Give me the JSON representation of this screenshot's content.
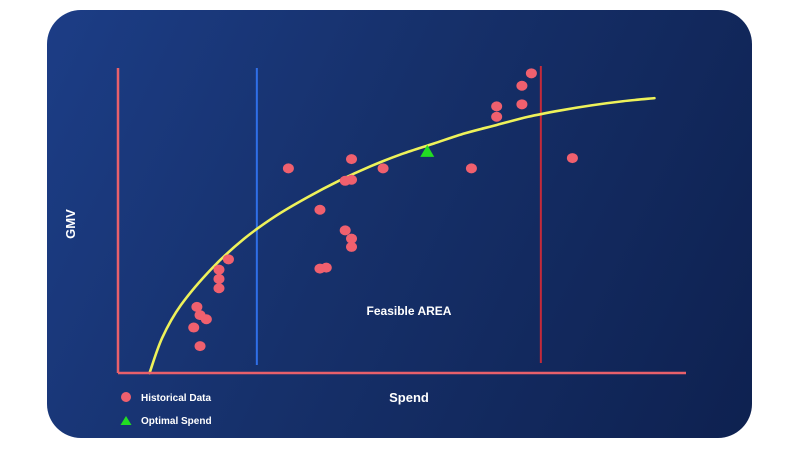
{
  "chart_data": {
    "type": "scatter",
    "xlabel": "Spend",
    "ylabel": "GMV",
    "annotation": "Feasible AREA",
    "grid": false,
    "legend_position": "bottom-left",
    "colors": {
      "background_start": "#1c3d86",
      "background_end": "#0e2150",
      "axes": "#e8606b",
      "points": "#f0606e",
      "curve": "#eef25a",
      "optimal": "#22dd22",
      "min_line": "#2f6fe8",
      "max_line": "#c42a3a"
    },
    "series": [
      {
        "name": "Historical Data",
        "marker": "circle",
        "points": [
          [
            1.3,
            1.3
          ],
          [
            1.2,
            2.2
          ],
          [
            1.3,
            2.8
          ],
          [
            1.25,
            3.2
          ],
          [
            1.4,
            2.6
          ],
          [
            1.6,
            4.1
          ],
          [
            1.6,
            4.55
          ],
          [
            1.6,
            5.0
          ],
          [
            1.75,
            5.5
          ],
          [
            2.7,
            9.9
          ],
          [
            3.2,
            7.9
          ],
          [
            3.2,
            5.05
          ],
          [
            3.3,
            5.1
          ],
          [
            3.6,
            6.9
          ],
          [
            3.7,
            6.5
          ],
          [
            3.7,
            6.1
          ],
          [
            3.6,
            9.3
          ],
          [
            3.7,
            9.35
          ],
          [
            3.7,
            10.35
          ],
          [
            4.2,
            9.9
          ],
          [
            5.6,
            9.9
          ],
          [
            6.0,
            12.4
          ],
          [
            6.0,
            12.9
          ],
          [
            6.4,
            13.0
          ],
          [
            6.4,
            13.9
          ],
          [
            6.55,
            14.5
          ],
          [
            7.2,
            10.4
          ]
        ]
      },
      {
        "name": "Optimal Spend",
        "marker": "triangle",
        "points": [
          [
            4.9,
            10.7
          ]
        ]
      }
    ],
    "fitted_curve": {
      "x": [
        0.5,
        0.7,
        1.0,
        1.5,
        2.0,
        2.5,
        3.0,
        3.5,
        4.0,
        4.5,
        5.0,
        5.5,
        6.0,
        6.5,
        7.0,
        7.5,
        8.0,
        8.5
      ],
      "y": [
        0.0,
        1.7,
        3.3,
        5.1,
        6.5,
        7.6,
        8.5,
        9.3,
        10.0,
        10.6,
        11.1,
        11.6,
        12.0,
        12.4,
        12.7,
        12.95,
        13.15,
        13.3
      ]
    },
    "spend_bounds": [
      2.2,
      6.7
    ],
    "xlim": [
      0,
      9
    ],
    "ylim": [
      0,
      15
    ]
  }
}
